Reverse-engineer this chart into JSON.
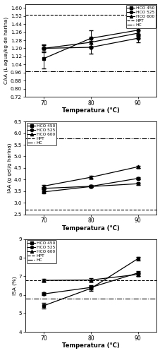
{
  "temps": [
    70,
    80,
    90
  ],
  "caa": {
    "hco450": [
      1.1,
      1.3,
      1.38
    ],
    "hco525": [
      1.2,
      1.21,
      1.3
    ],
    "hco600": [
      1.2,
      1.26,
      1.35
    ],
    "hco450_err": [
      0.1,
      0.08,
      0.05
    ],
    "hco525_err": [
      0.04,
      0.06,
      0.04
    ],
    "hco600_err": [
      0.03,
      0.04,
      0.03
    ],
    "hpt": 1.53,
    "hc": 0.97,
    "ylabel": "CAA (L agua/kg de harina)",
    "ylim": [
      0.72,
      1.64
    ],
    "yticks": [
      0.72,
      0.8,
      0.88,
      0.96,
      1.04,
      1.12,
      1.2,
      1.28,
      1.36,
      1.44,
      1.52,
      1.6
    ],
    "ytick_labels": [
      "0.72",
      "0.80",
      "0.88",
      "0.96",
      "1.04",
      "1.12",
      "1.20",
      "1.28",
      "1.36",
      "1.44",
      "1.52",
      "1.60"
    ],
    "legend_loc": "upper right"
  },
  "iaa": {
    "hco450": [
      3.47,
      3.7,
      3.82
    ],
    "hco525": [
      3.62,
      3.71,
      4.05
    ],
    "hco600": [
      3.72,
      4.1,
      4.55
    ],
    "hco450_err": [
      0.05,
      0.04,
      0.05
    ],
    "hco525_err": [
      0.05,
      0.05,
      0.05
    ],
    "hco600_err": [
      0.04,
      0.05,
      0.05
    ],
    "hpt": 2.7,
    "hc": 5.78,
    "ylabel": "IAA (g gel/g harina)",
    "ylim": [
      2.5,
      6.5
    ],
    "yticks": [
      2.5,
      3.0,
      3.5,
      4.0,
      4.5,
      5.0,
      5.5,
      6.0,
      6.5
    ],
    "ytick_labels": [
      "2.5",
      "3.0",
      "3.5",
      "4.0",
      "4.5",
      "5.0",
      "5.5",
      "6.0",
      "6.5"
    ],
    "legend_loc": "upper left"
  },
  "isa": {
    "hco450": [
      5.42,
      6.35,
      7.95
    ],
    "hco525": [
      6.05,
      6.4,
      7.18
    ],
    "hco600": [
      6.78,
      6.8,
      7.1
    ],
    "hco450_err": [
      0.15,
      0.12,
      0.1
    ],
    "hco525_err": [
      0.08,
      0.1,
      0.1
    ],
    "hco600_err": [
      0.08,
      0.08,
      0.1
    ],
    "hpt": 6.78,
    "hc": 5.78,
    "ylabel": "ISA (%)",
    "ylim": [
      4,
      9
    ],
    "yticks": [
      4,
      5,
      6,
      7,
      8,
      9
    ],
    "ytick_labels": [
      "4",
      "5",
      "6",
      "7",
      "8",
      "9"
    ],
    "legend_loc": "upper left"
  },
  "xlabel": "Temperatura (°C)",
  "xticks": [
    70,
    80,
    90
  ],
  "xlim": [
    66,
    94
  ]
}
